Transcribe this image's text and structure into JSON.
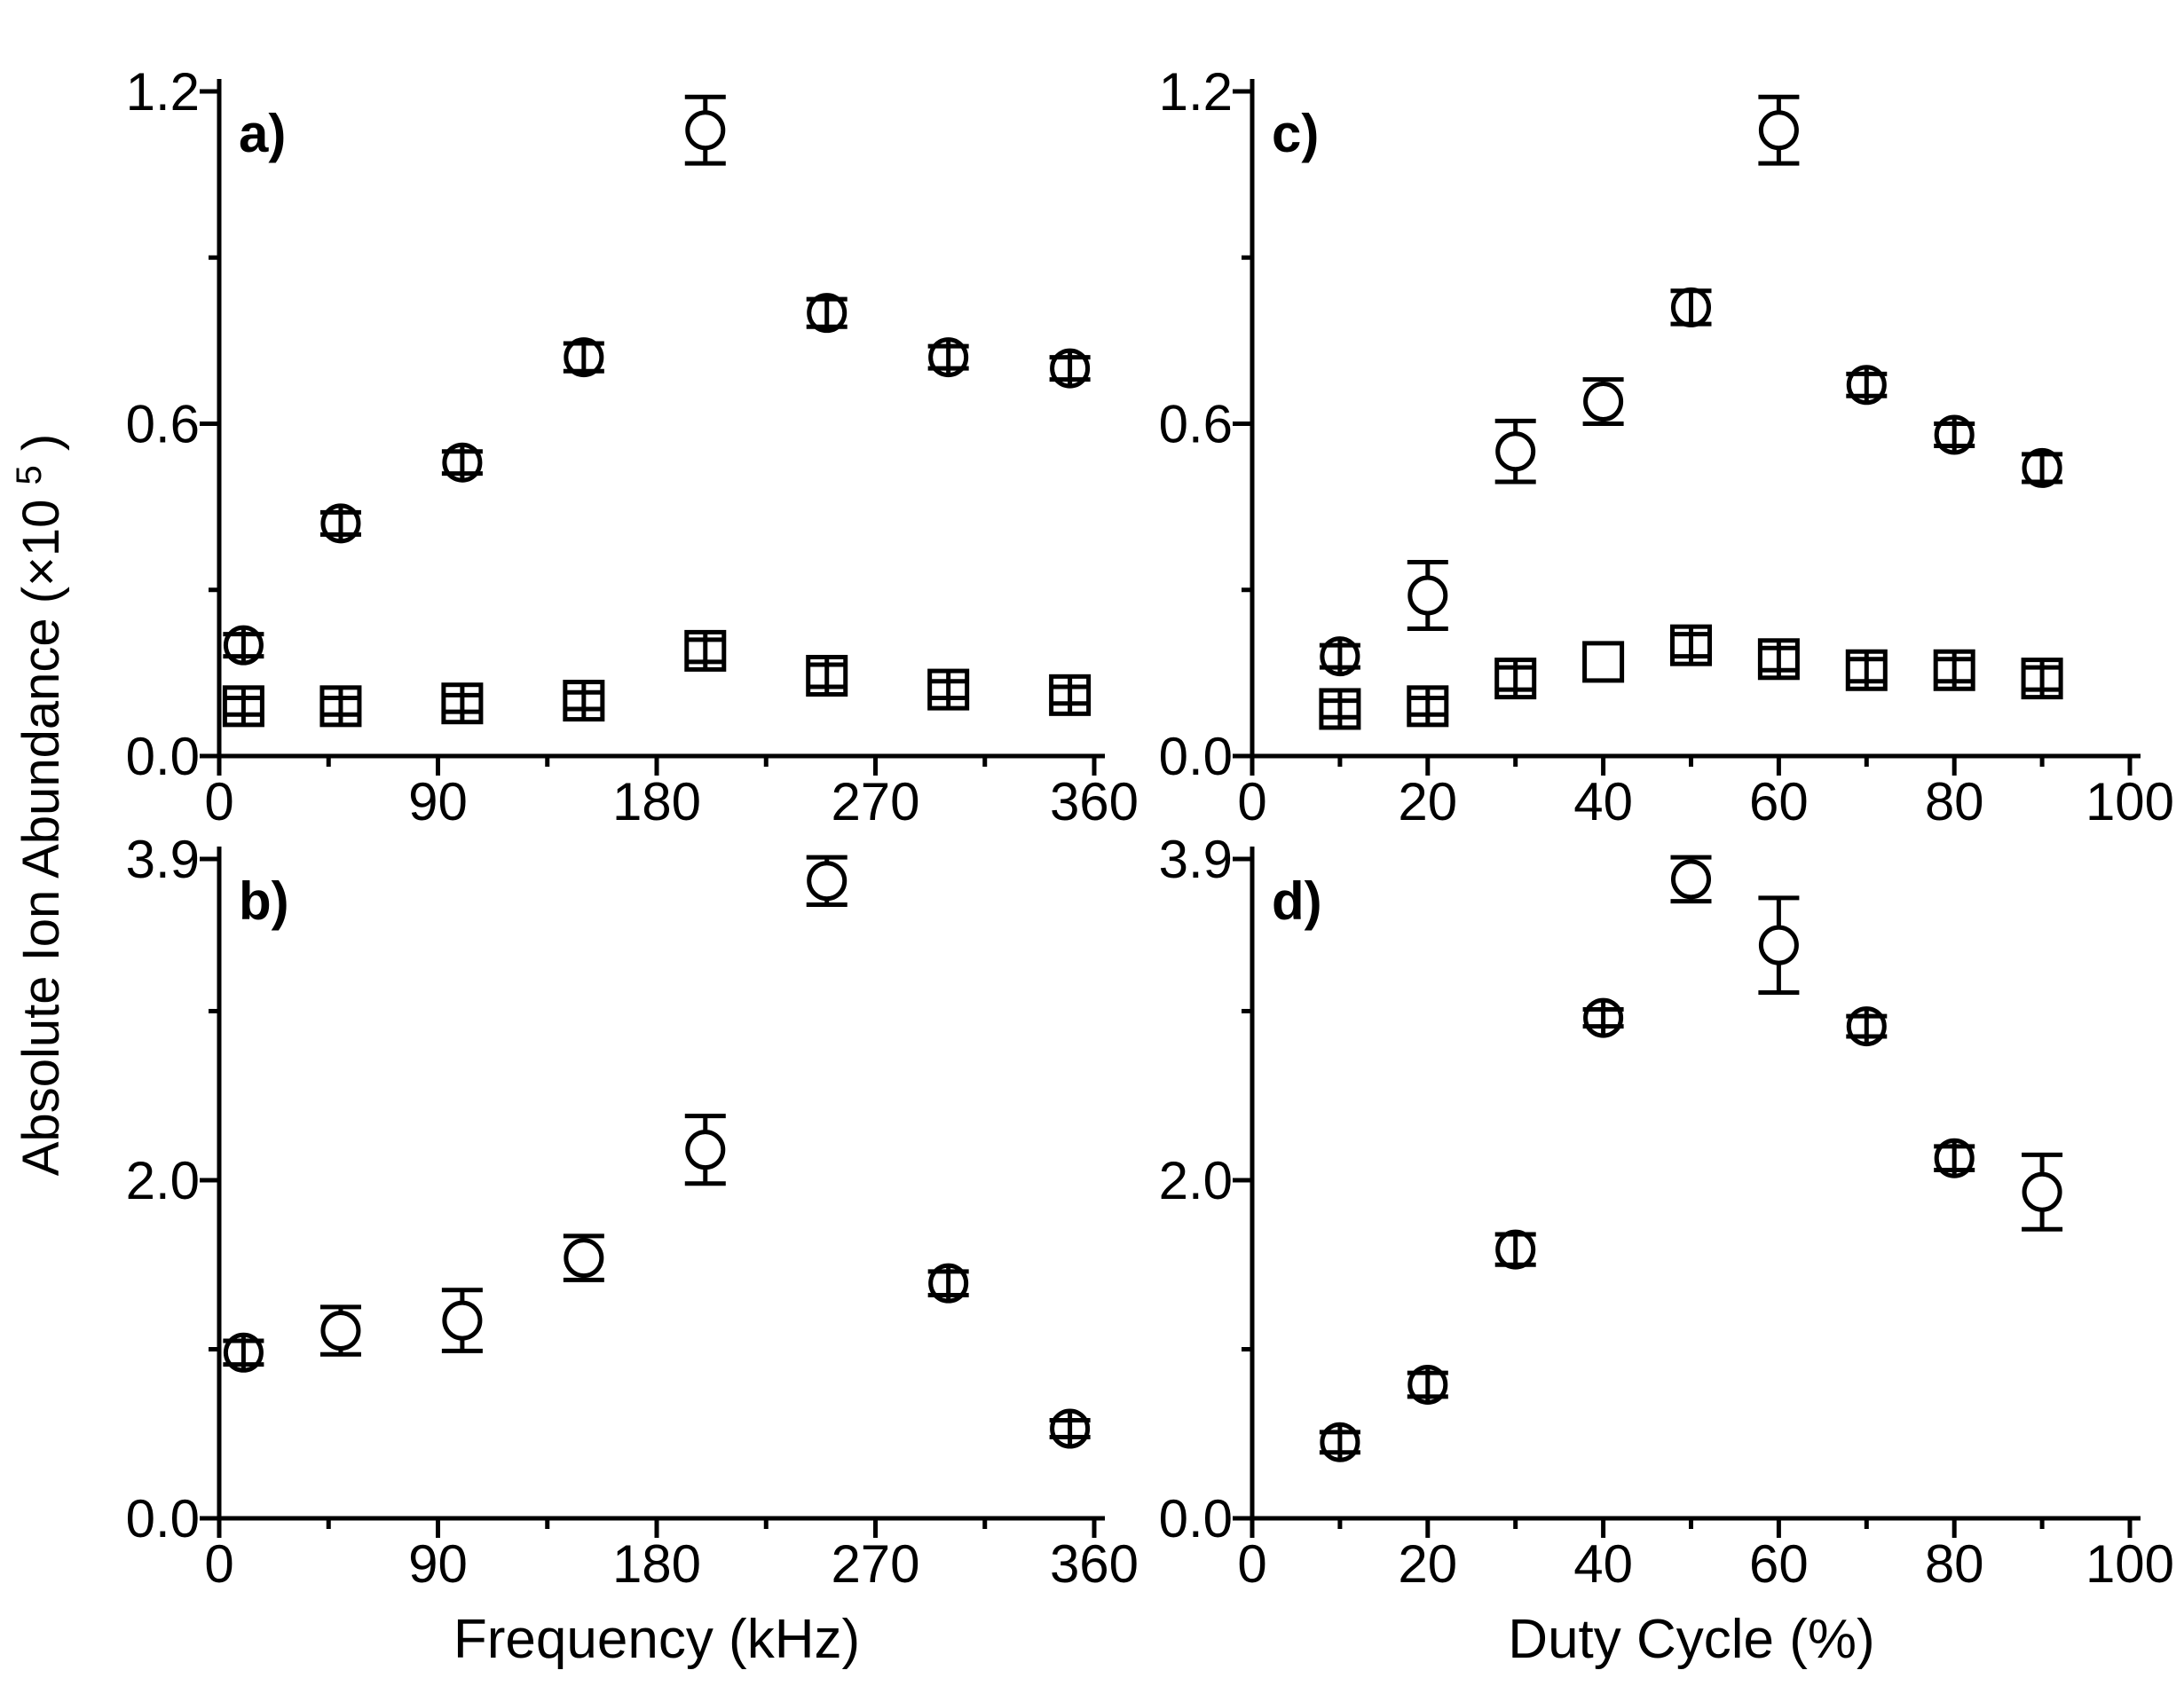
{
  "figure": {
    "ylabel": {
      "text": "Absolute Ion Abundance (×10⁵)",
      "pre": "Absolute Ion Abundance (×10",
      "sup": "5",
      "post": ")"
    },
    "xlabel_left": "Frequency (kHz)",
    "xlabel_right": "Duty Cycle (%)",
    "colors": {
      "ink": "#000000",
      "background": "#ffffff"
    }
  },
  "chart_data": [
    {
      "id": "a",
      "type": "scatter",
      "panel_label": "a)",
      "xlabel": "Frequency (kHz)",
      "xlim": [
        0,
        360
      ],
      "xticks": [
        0,
        90,
        180,
        270,
        360
      ],
      "xtick_labels": [
        "0",
        "90",
        "180",
        "270",
        "360"
      ],
      "xminor": [
        45,
        135,
        225,
        315
      ],
      "ylim": [
        0,
        1.2
      ],
      "yticks": [
        0,
        0.6,
        1.2
      ],
      "ytick_labels": [
        "0.0",
        "0.6",
        "1.2"
      ],
      "yminor": [
        0.3,
        0.9
      ],
      "grid": false,
      "legend": "none",
      "series": [
        {
          "name": "open-circle-series",
          "marker": "circle",
          "x": [
            10,
            50,
            100,
            150,
            200,
            250,
            300,
            350
          ],
          "y": [
            0.2,
            0.42,
            0.53,
            0.72,
            1.13,
            0.8,
            0.72,
            0.7
          ],
          "yerr": [
            0.02,
            0.02,
            0.02,
            0.025,
            0.06,
            0.025,
            0.02,
            0.02
          ]
        },
        {
          "name": "crossed-square-series",
          "marker": "square",
          "x": [
            10,
            50,
            100,
            150,
            200,
            250,
            300,
            350
          ],
          "y": [
            0.09,
            0.09,
            0.095,
            0.1,
            0.19,
            0.145,
            0.12,
            0.11
          ],
          "yerr": [
            0.015,
            0.015,
            0.015,
            0.015,
            0.02,
            0.02,
            0.015,
            0.015
          ]
        }
      ]
    },
    {
      "id": "b",
      "type": "scatter",
      "panel_label": "b)",
      "xlabel": "Frequency (kHz)",
      "xlim": [
        0,
        360
      ],
      "xticks": [
        0,
        90,
        180,
        270,
        360
      ],
      "xtick_labels": [
        "0",
        "90",
        "180",
        "270",
        "360"
      ],
      "xminor": [
        45,
        135,
        225,
        315
      ],
      "ylim": [
        0,
        3.9
      ],
      "yticks": [
        0,
        2.0,
        3.9
      ],
      "ytick_labels": [
        "0.0",
        "2.0",
        "3.9"
      ],
      "yminor": [
        1.0,
        3.0
      ],
      "grid": false,
      "legend": "none",
      "series": [
        {
          "name": "open-circle-series",
          "marker": "circle",
          "x": [
            10,
            50,
            100,
            150,
            200,
            250,
            300,
            350
          ],
          "y": [
            0.98,
            1.11,
            1.17,
            1.54,
            2.18,
            3.77,
            1.39,
            0.53
          ],
          "yerr": [
            0.07,
            0.14,
            0.18,
            0.13,
            0.2,
            0.14,
            0.07,
            0.05
          ]
        }
      ]
    },
    {
      "id": "c",
      "type": "scatter",
      "panel_label": "c)",
      "xlabel": "Duty Cycle (%)",
      "xlim": [
        0,
        100
      ],
      "xticks": [
        0,
        20,
        40,
        60,
        80,
        100
      ],
      "xtick_labels": [
        "0",
        "20",
        "40",
        "60",
        "80",
        "100"
      ],
      "xminor": [
        10,
        30,
        50,
        70,
        90
      ],
      "ylim": [
        0,
        1.2
      ],
      "yticks": [
        0,
        0.6,
        1.2
      ],
      "ytick_labels": [
        "0.0",
        "0.6",
        "1.2"
      ],
      "yminor": [
        0.3,
        0.9
      ],
      "grid": false,
      "legend": "none",
      "series": [
        {
          "name": "open-circle-series",
          "marker": "circle",
          "x": [
            10,
            20,
            30,
            40,
            50,
            60,
            70,
            80,
            90
          ],
          "y": [
            0.18,
            0.29,
            0.55,
            0.64,
            0.81,
            1.13,
            0.67,
            0.58,
            0.52
          ],
          "yerr": [
            0.02,
            0.06,
            0.055,
            0.04,
            0.03,
            0.06,
            0.02,
            0.02,
            0.025
          ]
        },
        {
          "name": "crossed-square-series",
          "marker": "square",
          "x": [
            10,
            20,
            30,
            40,
            50,
            60,
            70,
            80,
            90
          ],
          "y": [
            0.085,
            0.09,
            0.14,
            0.17,
            0.2,
            0.175,
            0.155,
            0.155,
            0.14
          ],
          "yerr": [
            0.015,
            0.015,
            0.02,
            0,
            0.02,
            0.02,
            0.02,
            0.02,
            0.02
          ]
        }
      ]
    },
    {
      "id": "d",
      "type": "scatter",
      "panel_label": "d)",
      "xlabel": "Duty Cycle (%)",
      "xlim": [
        0,
        100
      ],
      "xticks": [
        0,
        20,
        40,
        60,
        80,
        100
      ],
      "xtick_labels": [
        "0",
        "20",
        "40",
        "60",
        "80",
        "100"
      ],
      "xminor": [
        10,
        30,
        50,
        70,
        90
      ],
      "ylim": [
        0,
        3.9
      ],
      "yticks": [
        0,
        2.0,
        3.9
      ],
      "ytick_labels": [
        "0.0",
        "2.0",
        "3.9"
      ],
      "yminor": [
        1.0,
        3.0
      ],
      "grid": false,
      "legend": "none",
      "series": [
        {
          "name": "open-circle-series",
          "marker": "circle",
          "x": [
            10,
            20,
            30,
            40,
            50,
            60,
            70,
            80,
            90
          ],
          "y": [
            0.45,
            0.79,
            1.59,
            2.96,
            3.78,
            3.39,
            2.91,
            2.13,
            1.93
          ],
          "yerr": [
            0.06,
            0.07,
            0.09,
            0.05,
            0.13,
            0.28,
            0.06,
            0.07,
            0.22
          ]
        }
      ]
    }
  ]
}
